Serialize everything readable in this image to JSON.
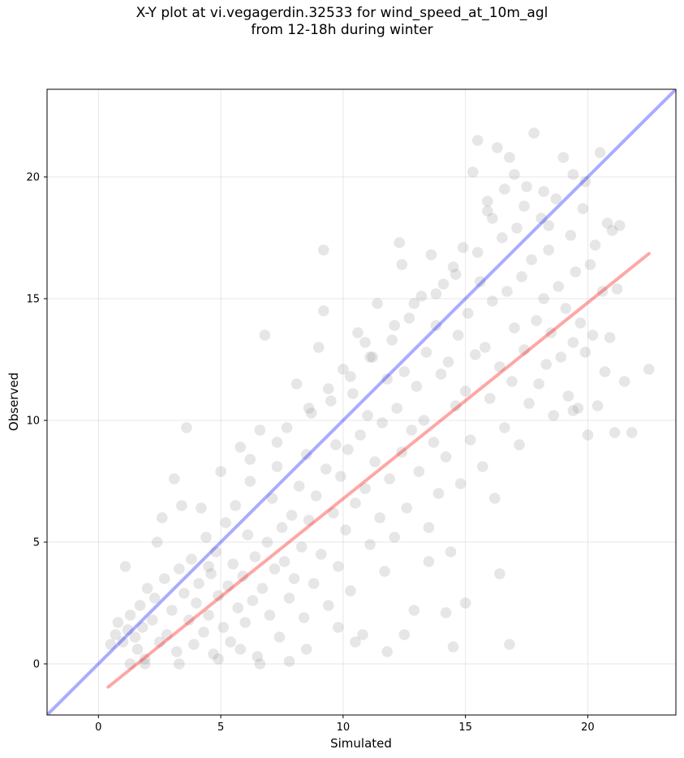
{
  "title_line1": "X-Y plot at vi.vegagerdin.32533 for wind_speed_at_10m_agl",
  "title_line2": "from 12-18h during winter",
  "chart_data": {
    "type": "scatter",
    "title": "X-Y plot at vi.vegagerdin.32533 for wind_speed_at_10m_agl from 12-18h during winter",
    "xlabel": "Simulated",
    "ylabel": "Observed",
    "xlim": [
      -2.1,
      23.6
    ],
    "ylim": [
      -2.1,
      23.6
    ],
    "xticks": [
      0,
      5,
      10,
      15,
      20
    ],
    "yticks": [
      0,
      5,
      10,
      15,
      20
    ],
    "grid": true,
    "point_color": "#808080",
    "identity_line": {
      "color": "#0000ff",
      "from": [
        -2.1,
        -2.1
      ],
      "to": [
        23.6,
        23.6
      ]
    },
    "fit_line": {
      "color": "#ff0000",
      "from": [
        0.4,
        -0.95
      ],
      "to": [
        22.5,
        16.85
      ]
    },
    "points": [
      [
        0.5,
        0.8
      ],
      [
        0.7,
        1.2
      ],
      [
        0.8,
        1.7
      ],
      [
        1.0,
        0.9
      ],
      [
        1.1,
        4.0
      ],
      [
        1.2,
        1.4
      ],
      [
        1.3,
        2.0
      ],
      [
        1.5,
        1.1
      ],
      [
        1.6,
        0.6
      ],
      [
        1.7,
        2.4
      ],
      [
        1.8,
        1.5
      ],
      [
        1.9,
        0.2
      ],
      [
        2.0,
        3.1
      ],
      [
        2.2,
        1.8
      ],
      [
        2.3,
        2.7
      ],
      [
        2.5,
        0.9
      ],
      [
        2.6,
        6.0
      ],
      [
        2.7,
        3.5
      ],
      [
        2.8,
        1.2
      ],
      [
        3.0,
        2.2
      ],
      [
        3.1,
        7.6
      ],
      [
        3.2,
        0.5
      ],
      [
        3.3,
        3.9
      ],
      [
        3.5,
        2.9
      ],
      [
        3.6,
        9.7
      ],
      [
        3.7,
        1.8
      ],
      [
        3.8,
        4.3
      ],
      [
        3.9,
        0.8
      ],
      [
        4.0,
        2.5
      ],
      [
        4.1,
        3.3
      ],
      [
        4.2,
        6.4
      ],
      [
        4.3,
        1.3
      ],
      [
        4.4,
        5.2
      ],
      [
        4.5,
        2.0
      ],
      [
        4.6,
        3.7
      ],
      [
        4.7,
        0.4
      ],
      [
        4.8,
        4.6
      ],
      [
        4.9,
        2.8
      ],
      [
        5.0,
        7.9
      ],
      [
        5.1,
        1.5
      ],
      [
        5.2,
        5.8
      ],
      [
        5.3,
        3.2
      ],
      [
        5.4,
        0.9
      ],
      [
        5.5,
        4.1
      ],
      [
        5.6,
        6.5
      ],
      [
        5.7,
        2.3
      ],
      [
        5.8,
        8.9
      ],
      [
        5.9,
        3.6
      ],
      [
        6.0,
        1.7
      ],
      [
        6.1,
        5.3
      ],
      [
        6.2,
        7.5
      ],
      [
        6.3,
        2.6
      ],
      [
        6.4,
        4.4
      ],
      [
        6.5,
        0.3
      ],
      [
        6.6,
        9.6
      ],
      [
        6.7,
        3.1
      ],
      [
        6.8,
        13.5
      ],
      [
        6.9,
        5.0
      ],
      [
        7.0,
        2.0
      ],
      [
        7.1,
        6.8
      ],
      [
        7.2,
        3.9
      ],
      [
        7.3,
        8.1
      ],
      [
        7.4,
        1.1
      ],
      [
        7.5,
        5.6
      ],
      [
        7.6,
        4.2
      ],
      [
        7.7,
        9.7
      ],
      [
        7.8,
        2.7
      ],
      [
        7.9,
        6.1
      ],
      [
        8.0,
        3.5
      ],
      [
        8.1,
        11.5
      ],
      [
        8.2,
        7.3
      ],
      [
        8.3,
        4.8
      ],
      [
        8.4,
        1.9
      ],
      [
        8.5,
        8.6
      ],
      [
        8.6,
        5.9
      ],
      [
        8.7,
        10.3
      ],
      [
        8.8,
        3.3
      ],
      [
        8.9,
        6.9
      ],
      [
        9.0,
        13.0
      ],
      [
        9.1,
        4.5
      ],
      [
        9.2,
        17.0
      ],
      [
        9.3,
        8.0
      ],
      [
        9.4,
        2.4
      ],
      [
        9.5,
        10.8
      ],
      [
        9.6,
        6.2
      ],
      [
        9.7,
        9.0
      ],
      [
        9.8,
        4.0
      ],
      [
        9.9,
        7.7
      ],
      [
        10.0,
        12.1
      ],
      [
        10.1,
        5.5
      ],
      [
        10.2,
        8.8
      ],
      [
        10.3,
        3.0
      ],
      [
        10.4,
        11.1
      ],
      [
        10.5,
        6.6
      ],
      [
        10.6,
        13.6
      ],
      [
        10.7,
        9.4
      ],
      [
        10.8,
        1.2
      ],
      [
        10.9,
        7.2
      ],
      [
        11.0,
        10.2
      ],
      [
        11.1,
        4.9
      ],
      [
        11.2,
        12.6
      ],
      [
        11.3,
        8.3
      ],
      [
        11.4,
        14.8
      ],
      [
        11.5,
        6.0
      ],
      [
        11.6,
        9.9
      ],
      [
        11.7,
        3.8
      ],
      [
        11.8,
        11.7
      ],
      [
        11.9,
        7.6
      ],
      [
        12.0,
        13.3
      ],
      [
        12.1,
        5.2
      ],
      [
        12.2,
        10.5
      ],
      [
        12.3,
        17.3
      ],
      [
        12.4,
        8.7
      ],
      [
        12.5,
        12.0
      ],
      [
        12.6,
        6.4
      ],
      [
        12.7,
        14.2
      ],
      [
        12.8,
        9.6
      ],
      [
        12.9,
        2.2
      ],
      [
        13.0,
        11.4
      ],
      [
        13.1,
        7.9
      ],
      [
        13.2,
        15.1
      ],
      [
        13.3,
        10.0
      ],
      [
        13.4,
        12.8
      ],
      [
        13.5,
        5.6
      ],
      [
        13.6,
        16.8
      ],
      [
        13.7,
        9.1
      ],
      [
        13.8,
        13.9
      ],
      [
        13.9,
        7.0
      ],
      [
        14.0,
        11.9
      ],
      [
        14.1,
        15.6
      ],
      [
        14.2,
        8.5
      ],
      [
        14.3,
        12.4
      ],
      [
        14.4,
        4.6
      ],
      [
        14.5,
        16.3
      ],
      [
        14.6,
        10.6
      ],
      [
        14.7,
        13.5
      ],
      [
        14.8,
        7.4
      ],
      [
        14.9,
        17.1
      ],
      [
        15.0,
        11.2
      ],
      [
        15.1,
        14.4
      ],
      [
        15.2,
        9.2
      ],
      [
        15.3,
        20.2
      ],
      [
        15.4,
        12.7
      ],
      [
        15.5,
        21.5
      ],
      [
        15.6,
        15.7
      ],
      [
        15.7,
        8.1
      ],
      [
        15.8,
        13.0
      ],
      [
        15.9,
        18.6
      ],
      [
        16.0,
        10.9
      ],
      [
        16.1,
        14.9
      ],
      [
        16.2,
        6.8
      ],
      [
        16.3,
        21.2
      ],
      [
        16.4,
        12.2
      ],
      [
        16.5,
        17.5
      ],
      [
        16.6,
        9.7
      ],
      [
        16.7,
        15.3
      ],
      [
        16.8,
        20.8
      ],
      [
        16.9,
        11.6
      ],
      [
        17.0,
        13.8
      ],
      [
        17.1,
        17.9
      ],
      [
        17.2,
        9.0
      ],
      [
        17.3,
        15.9
      ],
      [
        17.4,
        12.9
      ],
      [
        17.5,
        19.6
      ],
      [
        17.6,
        10.7
      ],
      [
        17.7,
        16.6
      ],
      [
        17.8,
        21.8
      ],
      [
        17.9,
        14.1
      ],
      [
        18.0,
        11.5
      ],
      [
        18.1,
        18.3
      ],
      [
        18.2,
        15.0
      ],
      [
        18.3,
        12.3
      ],
      [
        18.4,
        17.0
      ],
      [
        18.5,
        13.6
      ],
      [
        18.6,
        10.2
      ],
      [
        18.7,
        19.1
      ],
      [
        18.8,
        15.5
      ],
      [
        18.9,
        12.6
      ],
      [
        19.0,
        20.8
      ],
      [
        19.1,
        14.6
      ],
      [
        19.2,
        11.0
      ],
      [
        19.3,
        17.6
      ],
      [
        19.4,
        13.2
      ],
      [
        19.5,
        16.1
      ],
      [
        19.6,
        10.5
      ],
      [
        19.7,
        14.0
      ],
      [
        19.8,
        18.7
      ],
      [
        19.9,
        12.8
      ],
      [
        20.0,
        9.4
      ],
      [
        20.1,
        16.4
      ],
      [
        20.2,
        13.5
      ],
      [
        20.4,
        10.6
      ],
      [
        20.5,
        21.0
      ],
      [
        20.6,
        15.3
      ],
      [
        20.8,
        18.1
      ],
      [
        20.9,
        13.4
      ],
      [
        21.0,
        17.8
      ],
      [
        21.1,
        9.5
      ],
      [
        21.2,
        15.4
      ],
      [
        21.5,
        11.6
      ],
      [
        21.8,
        9.5
      ],
      [
        22.5,
        12.1
      ],
      [
        13.5,
        4.2
      ],
      [
        14.2,
        2.1
      ],
      [
        14.5,
        0.7
      ],
      [
        15.0,
        2.5
      ],
      [
        16.4,
        3.7
      ],
      [
        16.8,
        0.8
      ],
      [
        12.5,
        1.2
      ],
      [
        11.8,
        0.5
      ],
      [
        10.5,
        0.9
      ],
      [
        9.8,
        1.5
      ],
      [
        8.5,
        0.6
      ],
      [
        7.8,
        0.1
      ],
      [
        6.6,
        0.0
      ],
      [
        5.8,
        0.6
      ],
      [
        4.9,
        0.2
      ],
      [
        3.3,
        0.0
      ],
      [
        1.3,
        0.0
      ],
      [
        1.9,
        0.0
      ],
      [
        2.4,
        5.0
      ],
      [
        3.4,
        6.5
      ],
      [
        4.5,
        4.0
      ],
      [
        6.2,
        8.4
      ],
      [
        7.3,
        9.1
      ],
      [
        8.6,
        10.5
      ],
      [
        9.4,
        11.3
      ],
      [
        10.3,
        11.8
      ],
      [
        11.1,
        12.6
      ],
      [
        12.1,
        13.9
      ],
      [
        12.9,
        14.8
      ],
      [
        13.8,
        15.2
      ],
      [
        14.6,
        16.0
      ],
      [
        15.5,
        16.9
      ],
      [
        16.1,
        18.3
      ],
      [
        16.6,
        19.5
      ],
      [
        17.4,
        18.8
      ],
      [
        18.2,
        19.4
      ],
      [
        19.4,
        20.1
      ],
      [
        20.3,
        17.2
      ],
      [
        9.2,
        14.5
      ],
      [
        10.9,
        13.2
      ],
      [
        12.4,
        16.4
      ],
      [
        15.9,
        19.0
      ],
      [
        17.0,
        20.1
      ],
      [
        18.4,
        18.0
      ],
      [
        19.9,
        19.8
      ],
      [
        21.3,
        18.0
      ],
      [
        20.7,
        12.0
      ],
      [
        19.4,
        10.4
      ]
    ]
  }
}
